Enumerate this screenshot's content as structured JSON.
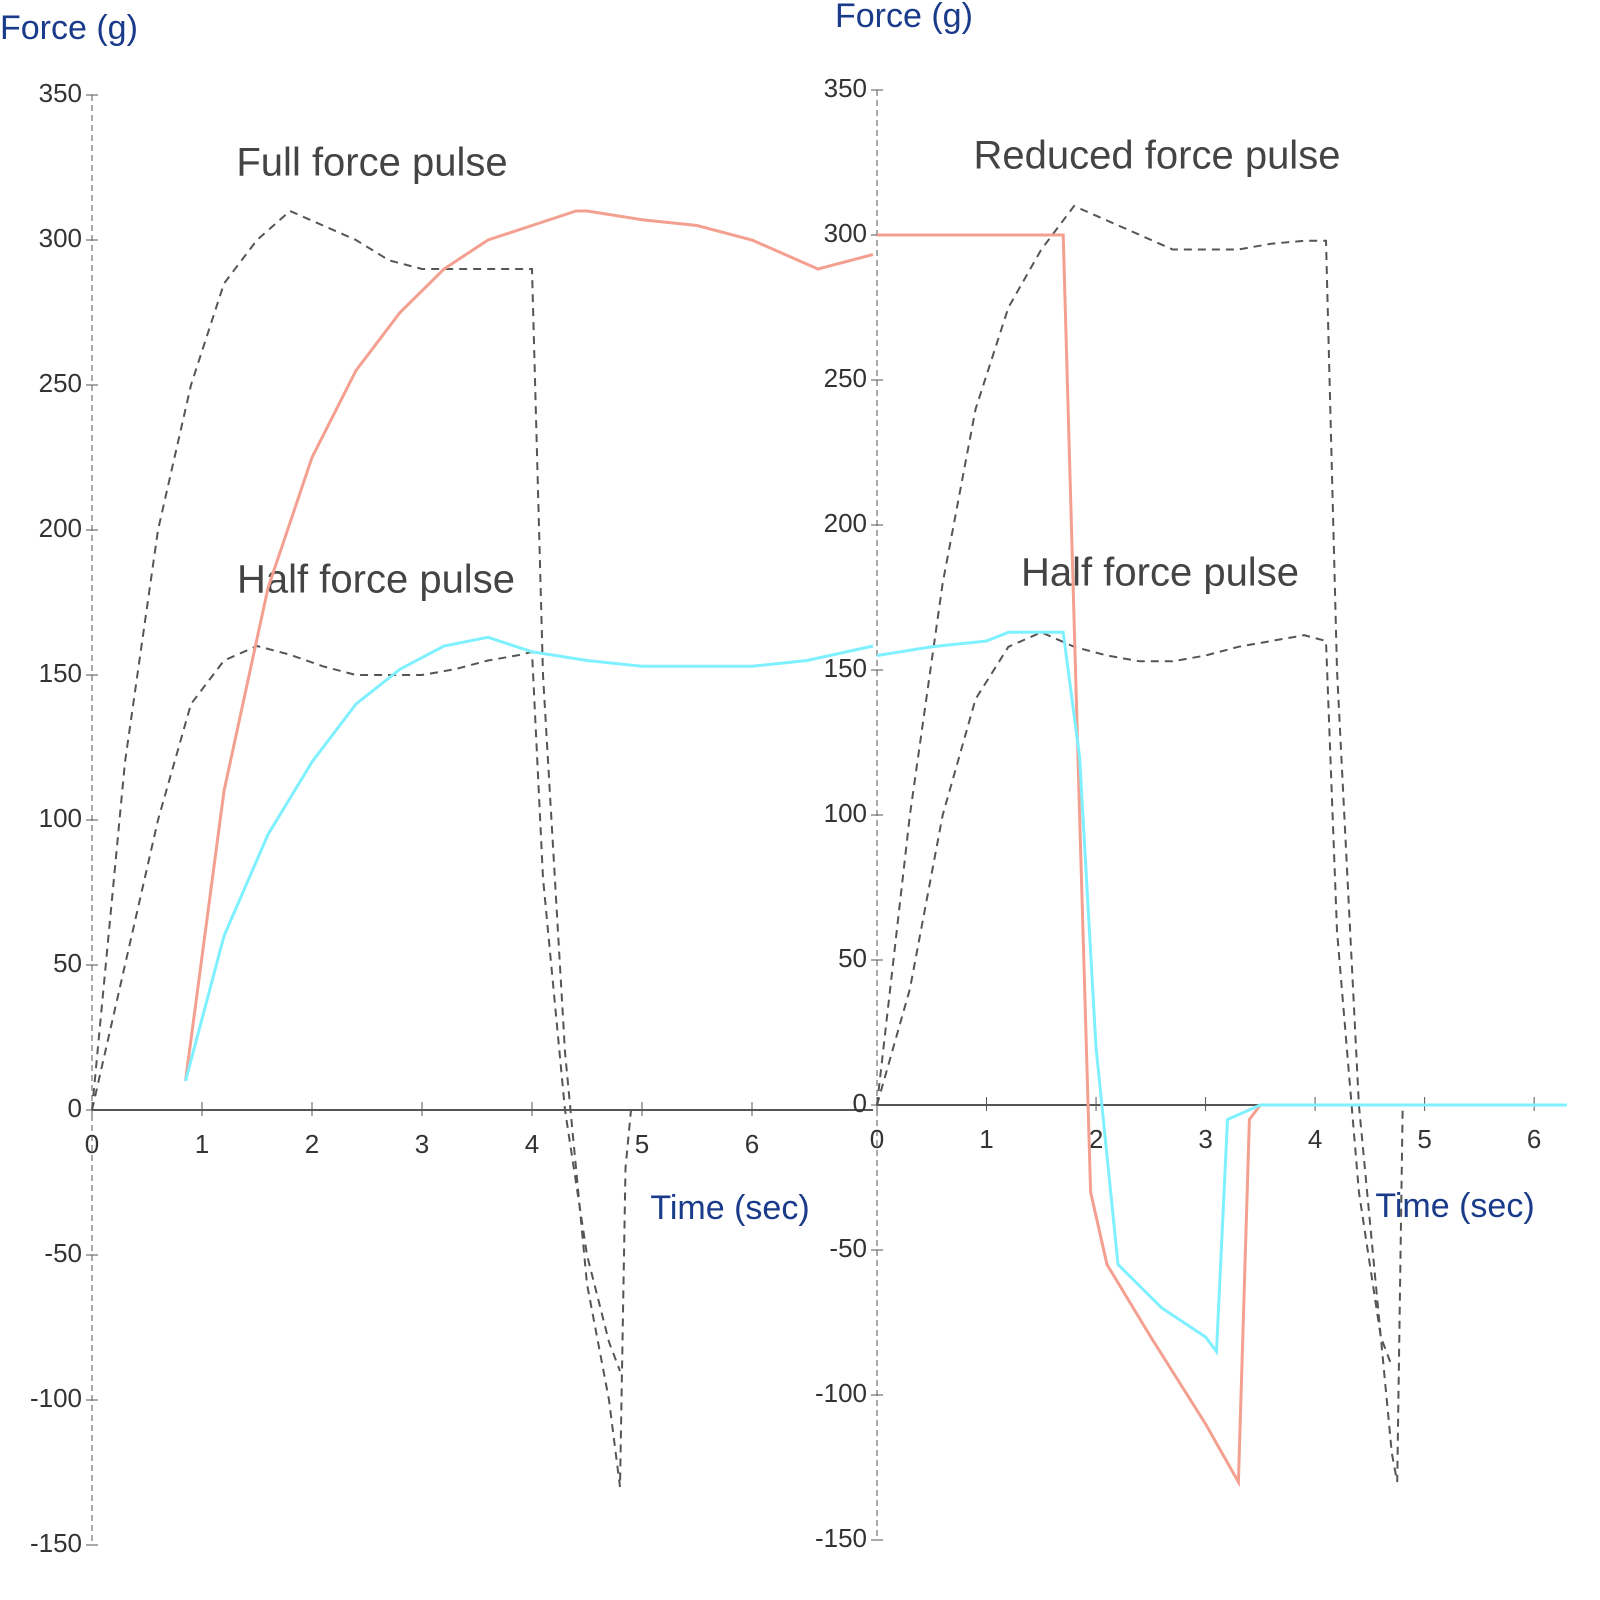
{
  "chart_data": [
    {
      "type": "line",
      "y_label": "Force (g)",
      "x_label": "Time (sec)",
      "annotations": [
        "Full force pulse",
        "Half force pulse"
      ],
      "xlim": [
        0,
        7.1
      ],
      "xticks": [
        0,
        1,
        2,
        3,
        4,
        5,
        6
      ],
      "ylim": [
        -150,
        350
      ],
      "yticks": [
        -150,
        -100,
        -50,
        0,
        50,
        100,
        150,
        200,
        250,
        300,
        350
      ],
      "series": [
        {
          "color": "#555555",
          "dashed": true,
          "x": [
            0,
            0.3,
            0.6,
            0.9,
            1.2,
            1.5,
            1.8,
            2.1,
            2.4,
            2.7,
            3.0,
            3.3,
            3.6,
            3.9,
            4.0,
            4.1,
            4.3,
            4.5,
            4.7,
            4.8,
            4.85,
            4.9,
            5.5,
            6.0,
            6.3
          ],
          "values": [
            0,
            120,
            200,
            250,
            285,
            300,
            310,
            305,
            300,
            293,
            290,
            290,
            290,
            290,
            290,
            150,
            20,
            -60,
            -100,
            -130,
            -20,
            0,
            0,
            0,
            0
          ]
        },
        {
          "color": "#555555",
          "dashed": true,
          "x": [
            0,
            0.3,
            0.6,
            0.9,
            1.2,
            1.5,
            1.8,
            2.1,
            2.4,
            2.7,
            3.0,
            3.3,
            3.6,
            3.9,
            4.0,
            4.1,
            4.3,
            4.5,
            4.7,
            4.8
          ],
          "values": [
            0,
            50,
            100,
            140,
            155,
            160,
            157,
            153,
            150,
            150,
            150,
            152,
            155,
            157,
            158,
            80,
            0,
            -50,
            -80,
            -90
          ]
        },
        {
          "color": "#f4a090",
          "dashed": false,
          "x": [
            0.85,
            1.2,
            1.6,
            2,
            2.4,
            2.8,
            3.2,
            3.6,
            4.0,
            4.4,
            4.5,
            5.0,
            5.5,
            6.0,
            6.3,
            6.6,
            7.1
          ],
          "values": [
            10,
            110,
            180,
            225,
            255,
            275,
            290,
            300,
            305,
            310,
            310,
            307,
            305,
            300,
            295,
            290,
            295
          ]
        },
        {
          "color": "#7ff0ff",
          "dashed": false,
          "x": [
            0.85,
            1.2,
            1.6,
            2,
            2.4,
            2.8,
            3.2,
            3.6,
            4.0,
            4.5,
            5.0,
            5.5,
            6.0,
            6.5,
            7.1
          ],
          "values": [
            10,
            60,
            95,
            120,
            140,
            152,
            160,
            163,
            158,
            155,
            153,
            153,
            153,
            155,
            160
          ]
        }
      ]
    },
    {
      "type": "line",
      "y_label": "Force (g)",
      "x_label": "Time (sec)",
      "annotations": [
        "Reduced force pulse",
        "Half force pulse"
      ],
      "xlim": [
        0,
        6.3
      ],
      "xticks": [
        0,
        1,
        2,
        3,
        4,
        5,
        6
      ],
      "ylim": [
        -150,
        350
      ],
      "yticks": [
        -150,
        -100,
        -50,
        0,
        50,
        100,
        150,
        200,
        250,
        300,
        350
      ],
      "series": [
        {
          "color": "#555555",
          "dashed": true,
          "x": [
            0,
            0.3,
            0.6,
            0.9,
            1.2,
            1.5,
            1.8,
            2.1,
            2.4,
            2.7,
            3,
            3.3,
            3.6,
            3.9,
            4.1,
            4.2,
            4.4,
            4.6,
            4.7,
            4.75,
            4.8,
            5.5,
            6.3
          ],
          "values": [
            0,
            100,
            180,
            240,
            275,
            295,
            310,
            305,
            300,
            295,
            295,
            295,
            297,
            298,
            298,
            150,
            0,
            -80,
            -120,
            -130,
            0,
            0,
            0
          ]
        },
        {
          "color": "#555555",
          "dashed": true,
          "x": [
            0,
            0.3,
            0.6,
            0.9,
            1.2,
            1.5,
            1.8,
            2.1,
            2.4,
            2.7,
            3,
            3.3,
            3.6,
            3.9,
            4.1,
            4.2,
            4.4,
            4.6,
            4.7
          ],
          "values": [
            0,
            40,
            100,
            140,
            158,
            163,
            158,
            155,
            153,
            153,
            155,
            158,
            160,
            162,
            160,
            60,
            -30,
            -80,
            -90
          ]
        },
        {
          "color": "#f4a090",
          "dashed": false,
          "x": [
            0,
            0.5,
            1,
            1.5,
            1.7,
            1.85,
            1.95,
            2.1,
            2.5,
            3.0,
            3.3,
            3.4,
            3.5,
            4,
            5,
            6.3
          ],
          "values": [
            300,
            300,
            300,
            300,
            300,
            100,
            -30,
            -55,
            -80,
            -110,
            -130,
            -5,
            0,
            0,
            0,
            0
          ]
        },
        {
          "color": "#7ff0ff",
          "dashed": false,
          "x": [
            0,
            0.5,
            1,
            1.2,
            1.5,
            1.7,
            1.85,
            2.0,
            2.2,
            2.6,
            3.0,
            3.1,
            3.2,
            3.5,
            4,
            5,
            6.3
          ],
          "values": [
            155,
            158,
            160,
            163,
            163,
            163,
            120,
            20,
            -55,
            -70,
            -80,
            -85,
            -5,
            0,
            0,
            0,
            0
          ]
        }
      ]
    }
  ]
}
